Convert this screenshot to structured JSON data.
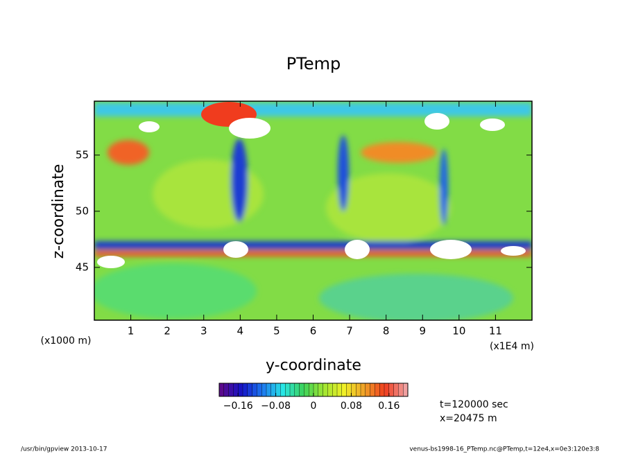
{
  "chart_data": {
    "type": "contour",
    "title": "PTemp",
    "x_label": "y-coordinate",
    "y_label": "z-coordinate",
    "x_unit": "(x1E4 m)",
    "y_unit": "(x1000 m)",
    "xlim": [
      0,
      12
    ],
    "xticks": [
      1,
      2,
      3,
      4,
      5,
      6,
      7,
      8,
      9,
      10,
      11
    ],
    "ylim": [
      40.3,
      59.8
    ],
    "yticks": [
      45,
      50,
      55
    ],
    "colorbar": {
      "clim": [
        -0.2,
        0.2
      ],
      "levels": 40,
      "colormap": [
        "#5a0a8c",
        "#1414c8",
        "#1e78f0",
        "#28e6e6",
        "#3cd25a",
        "#a0e632",
        "#f0f028",
        "#f0a028",
        "#f03c1e",
        "#f0a0a0"
      ],
      "ticks": [
        {
          "value": -0.16,
          "label": "−0.16"
        },
        {
          "value": -0.08,
          "label": "−0.08"
        },
        0,
        0.08,
        0.16
      ]
    },
    "annotations": [
      "t=120000 sec",
      "x=20475 m"
    ],
    "footer_left": "/usr/bin/gpview  2013-10-17",
    "footer_right": "venus-bs1998-16_PTemp.nc@PTemp,t=12e4,x=0e3:120e3:8"
  }
}
